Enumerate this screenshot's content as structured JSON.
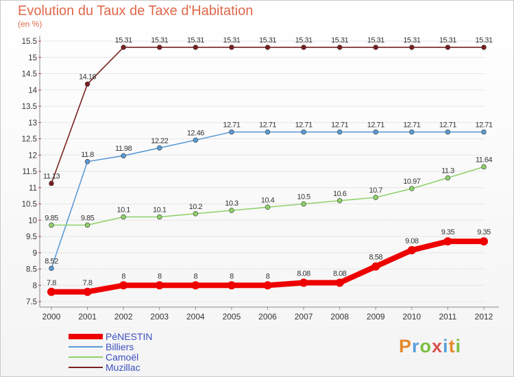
{
  "title": "Evolution du Taux de Taxe d'Habitation",
  "subtitle": "(en %)",
  "logo": {
    "letters": [
      "P",
      "r",
      "o",
      "x",
      "i",
      "t",
      "i"
    ],
    "colors": [
      "#e68a2e",
      "#5aa0d8",
      "#7bc043",
      "#d9534f",
      "#5aa0d8",
      "#e68a2e",
      "#7bc043"
    ]
  },
  "chart_data": {
    "type": "line",
    "title": "Evolution du Taux de Taxe d'Habitation",
    "ylabel": "(en %)",
    "x": [
      "2000",
      "2001",
      "2002",
      "2003",
      "2004",
      "2005",
      "2006",
      "2007",
      "2008",
      "2009",
      "2010",
      "2011",
      "2012"
    ],
    "ylim": [
      7.5,
      15.5
    ],
    "yticks": [
      "7.5",
      "8",
      "8.5",
      "9",
      "9.5",
      "10",
      "10.5",
      "11",
      "11.5",
      "12",
      "12.5",
      "13",
      "13.5",
      "14",
      "14.5",
      "15",
      "15.5"
    ],
    "grid": "horizontal",
    "legend": "bottom-left",
    "series": [
      {
        "name": "Muzillac",
        "color": "#7a1f1f",
        "values": [
          11.13,
          14.18,
          15.31,
          15.31,
          15.31,
          15.31,
          15.31,
          15.31,
          15.31,
          15.31,
          15.31,
          15.31,
          15.31
        ],
        "labels": [
          "11.13",
          "14.18",
          "15.31",
          "15.31",
          "15.31",
          "15.31",
          "15.31",
          "15.31",
          "15.31",
          "15.31",
          "15.31",
          "15.31",
          "15.31"
        ]
      },
      {
        "name": "Billiers",
        "color": "#5b9bd5",
        "values": [
          8.52,
          11.8,
          11.98,
          12.22,
          12.46,
          12.71,
          12.71,
          12.71,
          12.71,
          12.71,
          12.71,
          12.71,
          12.71
        ],
        "labels": [
          "8.52",
          "11.8",
          "11.98",
          "12.22",
          "12.46",
          "12.71",
          "12.71",
          "12.71",
          "12.71",
          "12.71",
          "12.71",
          "12.71",
          "12.71"
        ]
      },
      {
        "name": "Camoël",
        "color": "#8fd16a",
        "values": [
          9.85,
          9.85,
          10.1,
          10.1,
          10.2,
          10.3,
          10.4,
          10.5,
          10.6,
          10.7,
          10.97,
          11.3,
          11.64
        ],
        "labels": [
          "9.85",
          "9.85",
          "10.1",
          "10.1",
          "10.2",
          "10.3",
          "10.4",
          "10.5",
          "10.6",
          "10.7",
          "10.97",
          "11.3",
          "11.64"
        ]
      },
      {
        "name": "PéNESTIN",
        "color": "#ee0000",
        "values": [
          7.8,
          7.8,
          8,
          8,
          8,
          8,
          8,
          8.08,
          8.08,
          8.58,
          9.08,
          9.35,
          9.35
        ],
        "labels": [
          "7.8",
          "7.8",
          "8",
          "8",
          "8",
          "8",
          "8",
          "8.08",
          "8.08",
          "8.58",
          "9.08",
          "9.35",
          "9.35"
        ]
      }
    ],
    "legend_order": [
      "PéNESTIN",
      "Billiers",
      "Camoël",
      "Muzillac"
    ]
  }
}
